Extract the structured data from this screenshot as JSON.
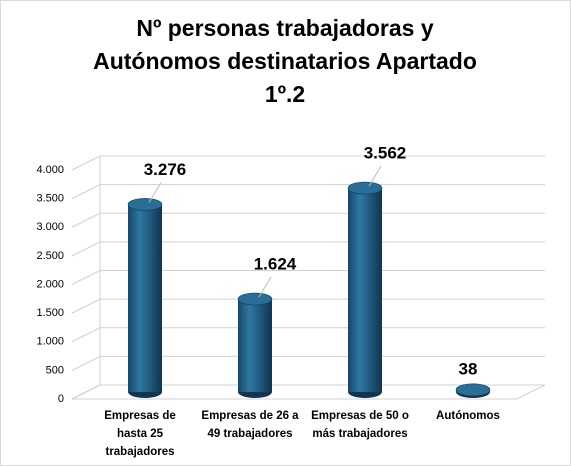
{
  "chart_data": {
    "type": "bar3d",
    "title": [
      "Nº personas trabajadoras y",
      "Autónomos destinatarios Apartado",
      "1º.2"
    ],
    "categories": [
      [
        "Empresas de",
        "hasta 25",
        "trabajadores"
      ],
      [
        "Empresas de 26 a",
        "49 trabajadores"
      ],
      [
        "Empresas de 50 o",
        "más trabajadores"
      ],
      [
        "Autónomos"
      ]
    ],
    "values": [
      3276,
      1624,
      3562,
      38
    ],
    "value_labels": [
      "3.276",
      "1.624",
      "3.562",
      "38"
    ],
    "color": "#1f5c82",
    "ylim": [
      0,
      4000
    ],
    "yticks": [
      0,
      500,
      {
        "value": 1000,
        "label": "1.000"
      },
      {
        "value": 1500,
        "label": "1.500"
      },
      {
        "value": 2000,
        "label": "2.000"
      },
      {
        "value": 2500,
        "label": "2.500"
      },
      {
        "value": 3000,
        "label": "3.000"
      },
      {
        "value": 3500,
        "label": "3.500"
      },
      {
        "value": 4000,
        "label": "4.000"
      }
    ],
    "grid": true
  }
}
